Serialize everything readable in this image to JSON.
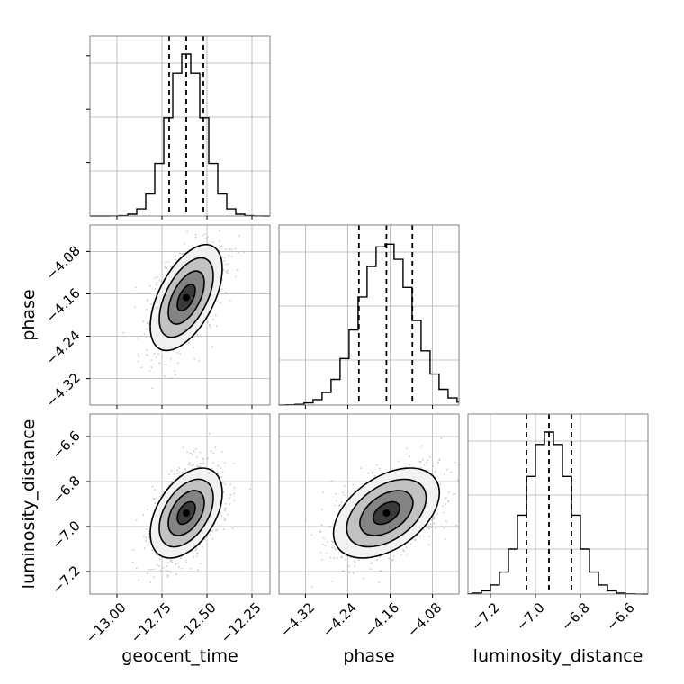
{
  "chart_data": {
    "type": "corner",
    "parameters": [
      {
        "key": "geocent_time",
        "label": "geocent_time",
        "range": [
          -13.15,
          -12.15
        ],
        "ticks": [
          -13.0,
          -12.75,
          -12.5,
          -12.25
        ],
        "tick_labels": [
          "−13.00",
          "−12.75",
          "−12.50",
          "−12.25"
        ],
        "median": -12.615,
        "q16": -12.71,
        "q84": -12.52,
        "std": 0.1,
        "hist_bin_step": 0.05
      },
      {
        "key": "phase",
        "label": "phase",
        "range": [
          -4.37,
          -4.03
        ],
        "ticks": [
          -4.32,
          -4.24,
          -4.16,
          -4.08
        ],
        "tick_labels": [
          "−4.32",
          "−4.24",
          "−4.16",
          "−4.08"
        ],
        "median": -4.167,
        "q16": -4.219,
        "q84": -4.118,
        "std": 0.05,
        "hist_bin_step": 0.017
      },
      {
        "key": "luminosity_distance",
        "label": "luminosity_distance",
        "range": [
          -7.3,
          -6.5
        ],
        "ticks": [
          -7.2,
          -7.0,
          -6.8,
          -6.6
        ],
        "tick_labels": [
          "−7.2",
          "−7.0",
          "−6.8",
          "−6.6"
        ],
        "median": -6.94,
        "q16": -7.04,
        "q84": -6.84,
        "std": 0.1,
        "hist_bin_step": 0.04
      }
    ],
    "correlations": {
      "geocent_time|phase": 0.55,
      "geocent_time|luminosity_distance": 0.45,
      "phase|luminosity_distance": 0.45
    },
    "quantile_lines": [
      0.16,
      0.5,
      0.84
    ],
    "contour_levels_sigma": [
      0.5,
      1.0,
      1.5,
      2.0
    ],
    "grid": true,
    "colors": {
      "hist": "#000000",
      "scatter": "#9e9e9e",
      "grid": "#b0b0b0",
      "frame": "#808080"
    }
  }
}
